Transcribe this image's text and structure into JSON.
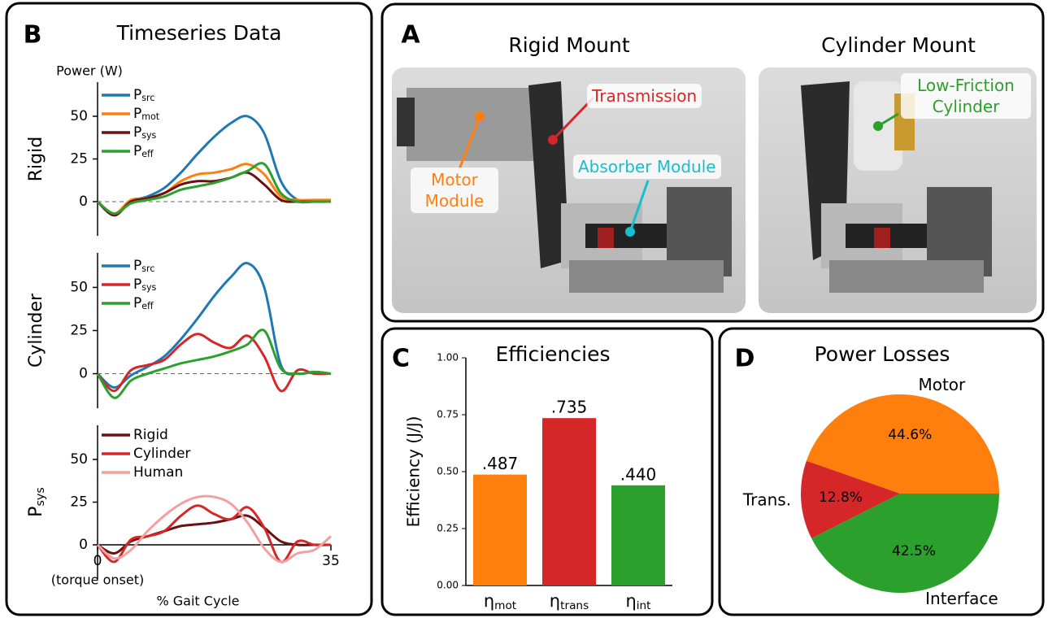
{
  "panels": {
    "a": "A",
    "b": "B",
    "c": "C",
    "d": "D",
    "timeseries_title": "Timeseries Data",
    "rigid_title": "Rigid Mount",
    "cylinder_title": "Cylinder Mount",
    "annotations": [
      "Transmission",
      "Motor Module",
      "Absorber Module",
      "Low-Friction Cylinder"
    ]
  },
  "chart_data": [
    {
      "type": "line",
      "units_label": "Power (W)",
      "ylabel": "Rigid",
      "x": [
        0,
        2.5,
        5,
        7.5,
        10,
        12.5,
        15,
        17.5,
        20,
        22.5,
        25,
        27.5,
        30,
        32.5,
        35
      ],
      "xlim": [
        0,
        35
      ],
      "ylim": [
        -20,
        70
      ],
      "yticks": [
        0,
        25,
        50
      ],
      "series": [
        {
          "name": "Psrc",
          "color": "#1f77b4",
          "values": [
            0,
            -8,
            0,
            3,
            8,
            17,
            28,
            38,
            46,
            50,
            40,
            12,
            1,
            0,
            0
          ]
        },
        {
          "name": "Pmot",
          "color": "#ff7f0e",
          "values": [
            0,
            -7,
            1,
            2,
            5,
            12,
            16,
            17,
            19,
            22,
            16,
            3,
            1,
            1,
            1
          ]
        },
        {
          "name": "Psys",
          "color": "#6b1111",
          "values": [
            0,
            -8,
            0,
            2,
            5,
            10,
            12,
            12,
            14,
            17,
            10,
            1,
            0,
            0,
            0
          ]
        },
        {
          "name": "Peff",
          "color": "#2ca02c",
          "values": [
            0,
            -7,
            -1,
            1,
            3,
            7,
            9,
            11,
            14,
            18,
            22,
            5,
            0,
            0,
            0
          ]
        }
      ]
    },
    {
      "type": "line",
      "ylabel": "Cylinder",
      "x": [
        0,
        2.5,
        5,
        7.5,
        10,
        12.5,
        15,
        17.5,
        20,
        22.5,
        25,
        27.5,
        30,
        32.5,
        35
      ],
      "xlim": [
        0,
        35
      ],
      "ylim": [
        -20,
        70
      ],
      "yticks": [
        0,
        25,
        50
      ],
      "series": [
        {
          "name": "Psrc",
          "color": "#1f77b4",
          "values": [
            0,
            -8,
            -1,
            4,
            10,
            20,
            32,
            45,
            56,
            64,
            50,
            5,
            0,
            1,
            0
          ]
        },
        {
          "name": "Psys",
          "color": "#d62728",
          "values": [
            0,
            -10,
            2,
            5,
            8,
            17,
            23,
            18,
            15,
            22,
            10,
            -10,
            2,
            0,
            0
          ]
        },
        {
          "name": "Peff",
          "color": "#2ca02c",
          "values": [
            0,
            -14,
            -4,
            0,
            3,
            6,
            8,
            10,
            13,
            17,
            25,
            3,
            0,
            1,
            0
          ]
        }
      ]
    },
    {
      "type": "line",
      "ylabel": "Psys",
      "xlabel": "% Gait Cycle",
      "annotation": "(torque onset)",
      "x": [
        0,
        2.5,
        5,
        7.5,
        10,
        12.5,
        15,
        17.5,
        20,
        22.5,
        25,
        27.5,
        30,
        32.5,
        35
      ],
      "xlim": [
        0,
        35
      ],
      "xticks": [
        0,
        35
      ],
      "ylim": [
        -20,
        70
      ],
      "yticks": [
        0,
        25,
        50
      ],
      "series": [
        {
          "name": "Rigid",
          "color": "#6b1111",
          "values": [
            0,
            -5,
            2,
            5,
            8,
            11,
            12,
            13,
            15,
            17,
            10,
            2,
            0,
            0,
            0
          ]
        },
        {
          "name": "Cylinder",
          "color": "#d62728",
          "values": [
            0,
            -10,
            3,
            5,
            8,
            17,
            23,
            18,
            15,
            22,
            10,
            -10,
            2,
            0,
            0
          ]
        },
        {
          "name": "Human",
          "color": "#f0a0a0",
          "values": [
            0,
            -8,
            -3,
            8,
            17,
            24,
            28,
            28,
            24,
            13,
            -2,
            -10,
            -5,
            -3,
            5
          ]
        }
      ]
    },
    {
      "type": "bar",
      "title": "Efficiencies",
      "ylabel": "Efficiency (J/J)",
      "categories": [
        "ηmot",
        "ηtrans",
        "ηint"
      ],
      "values": [
        0.487,
        0.735,
        0.44
      ],
      "value_labels": [
        ".487",
        ".735",
        ".440"
      ],
      "colors": [
        "#ff7f0e",
        "#d62728",
        "#2ca02c"
      ],
      "ylim": [
        0,
        1
      ],
      "yticks": [
        {
          "value": 0,
          "label": "0.00"
        },
        {
          "value": 0.25,
          "label": "0.25"
        },
        {
          "value": 0.5,
          "label": "0.50"
        },
        {
          "value": 0.75,
          "label": "0.75"
        },
        {
          "value": 1,
          "label": "1.00"
        }
      ]
    },
    {
      "type": "pie",
      "title": "Power Losses",
      "categories": [
        "Motor",
        "Trans.",
        "Interface"
      ],
      "values": [
        44.6,
        12.8,
        42.5
      ],
      "value_labels": [
        "44.6%",
        "12.8%",
        "42.5%"
      ],
      "colors": [
        "#ff7f0e",
        "#d62728",
        "#2ca02c"
      ]
    }
  ]
}
